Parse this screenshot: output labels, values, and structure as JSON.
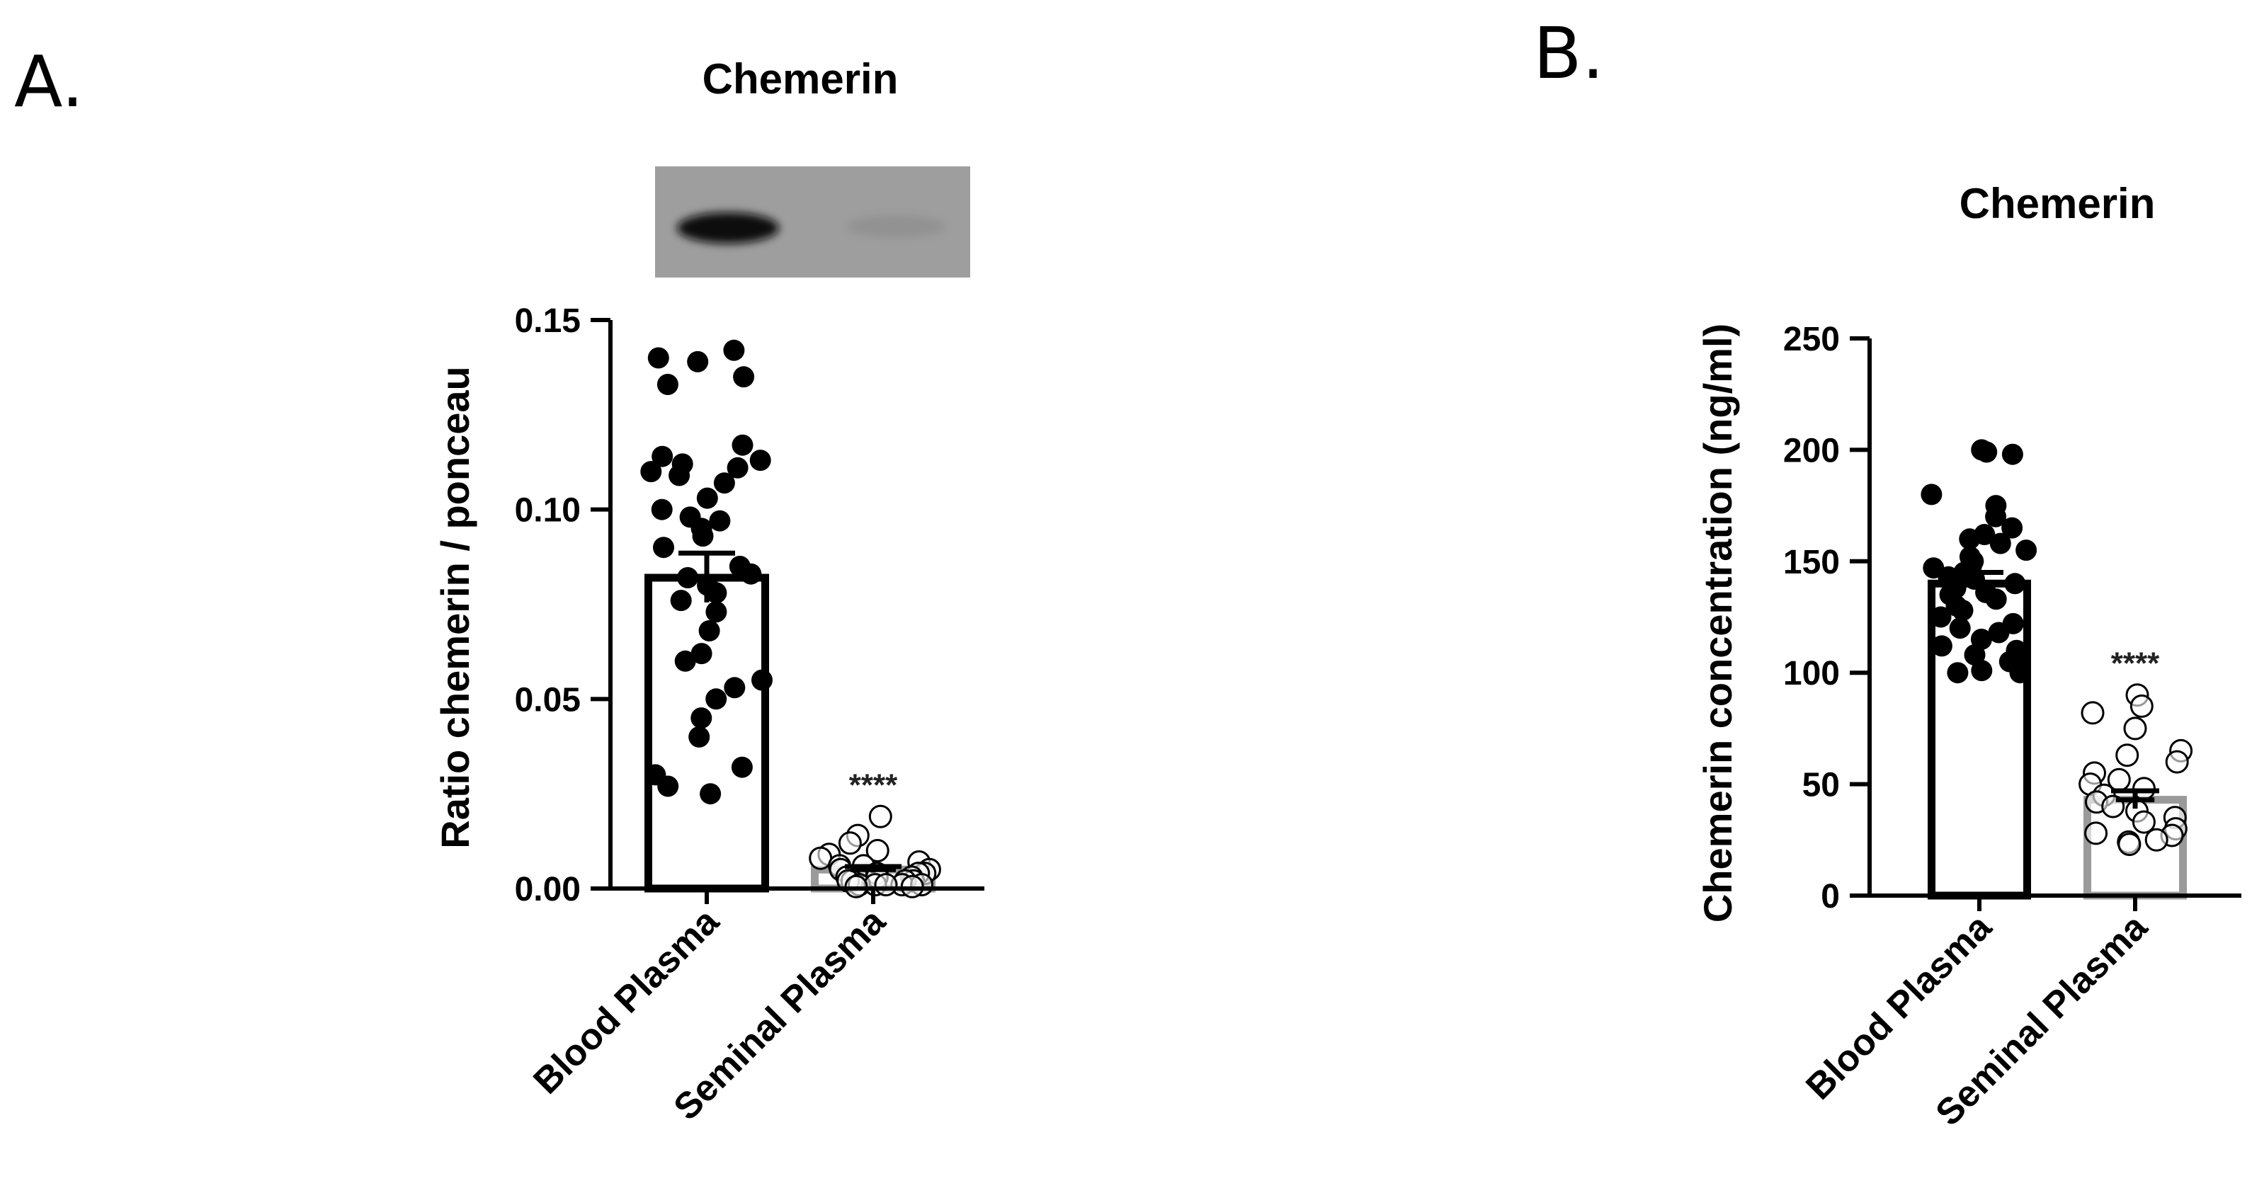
{
  "chart_data": [
    {
      "type": "bar",
      "panel": "A.",
      "title": "Chemerin",
      "ylabel": "Ratio chemerin / ponceau",
      "xlabel": "",
      "ylim": [
        0,
        0.15
      ],
      "yticks": [
        "0.00",
        "0.05",
        "0.10",
        "0.15"
      ],
      "yticks_values": [
        0,
        0.05,
        0.1,
        0.15
      ],
      "categories": [
        "Blood Plasma",
        "Seminal Plasma"
      ],
      "values": [
        0.082,
        0.005
      ],
      "sem": [
        0.0065,
        0.0008
      ],
      "bar_colors": [
        "#000000",
        "#9a9a9a"
      ],
      "point_styles": [
        "filled",
        "open"
      ],
      "significance": [
        "",
        "****"
      ],
      "points": [
        [
          0.142,
          0.14,
          0.139,
          0.135,
          0.133,
          0.117,
          0.114,
          0.113,
          0.112,
          0.111,
          0.11,
          0.109,
          0.107,
          0.103,
          0.1,
          0.098,
          0.097,
          0.095,
          0.093,
          0.09,
          0.085,
          0.083,
          0.082,
          0.08,
          0.078,
          0.076,
          0.073,
          0.068,
          0.062,
          0.06,
          0.055,
          0.053,
          0.05,
          0.045,
          0.04,
          0.032,
          0.03,
          0.027,
          0.025
        ],
        [
          0.019,
          0.014,
          0.012,
          0.01,
          0.009,
          0.008,
          0.007,
          0.006,
          0.006,
          0.005,
          0.005,
          0.004,
          0.004,
          0.004,
          0.003,
          0.003,
          0.003,
          0.002,
          0.002,
          0.002,
          0.002,
          0.001,
          0.001,
          0.001,
          0.001,
          0.001,
          0.0005,
          0.0005
        ]
      ],
      "blot": {
        "band_intensity": [
          1.0,
          0.08
        ]
      }
    },
    {
      "type": "bar",
      "panel": "B.",
      "title": "Chemerin",
      "ylabel": "Chemerin concentration (ng/ml)",
      "xlabel": "",
      "ylim": [
        0,
        250
      ],
      "yticks": [
        "0",
        "50",
        "100",
        "150",
        "200",
        "250"
      ],
      "yticks_values": [
        0,
        50,
        100,
        150,
        200,
        250
      ],
      "categories": [
        "Blood Plasma",
        "Seminal Plasma"
      ],
      "values": [
        140,
        43
      ],
      "sem": [
        5,
        4
      ],
      "bar_colors": [
        "#000000",
        "#9a9a9a"
      ],
      "point_styles": [
        "filled",
        "open"
      ],
      "significance": [
        "",
        "****"
      ],
      "points": [
        [
          200,
          199,
          198,
          180,
          175,
          170,
          165,
          162,
          160,
          158,
          155,
          152,
          150,
          148,
          147,
          145,
          143,
          142,
          140,
          138,
          136,
          135,
          133,
          130,
          128,
          125,
          122,
          120,
          118,
          115,
          112,
          110,
          108,
          105,
          103,
          101,
          100,
          100
        ],
        [
          90,
          85,
          82,
          75,
          65,
          63,
          60,
          55,
          52,
          50,
          48,
          45,
          42,
          40,
          38,
          35,
          33,
          30,
          28,
          27,
          25,
          24,
          23
        ]
      ]
    }
  ]
}
